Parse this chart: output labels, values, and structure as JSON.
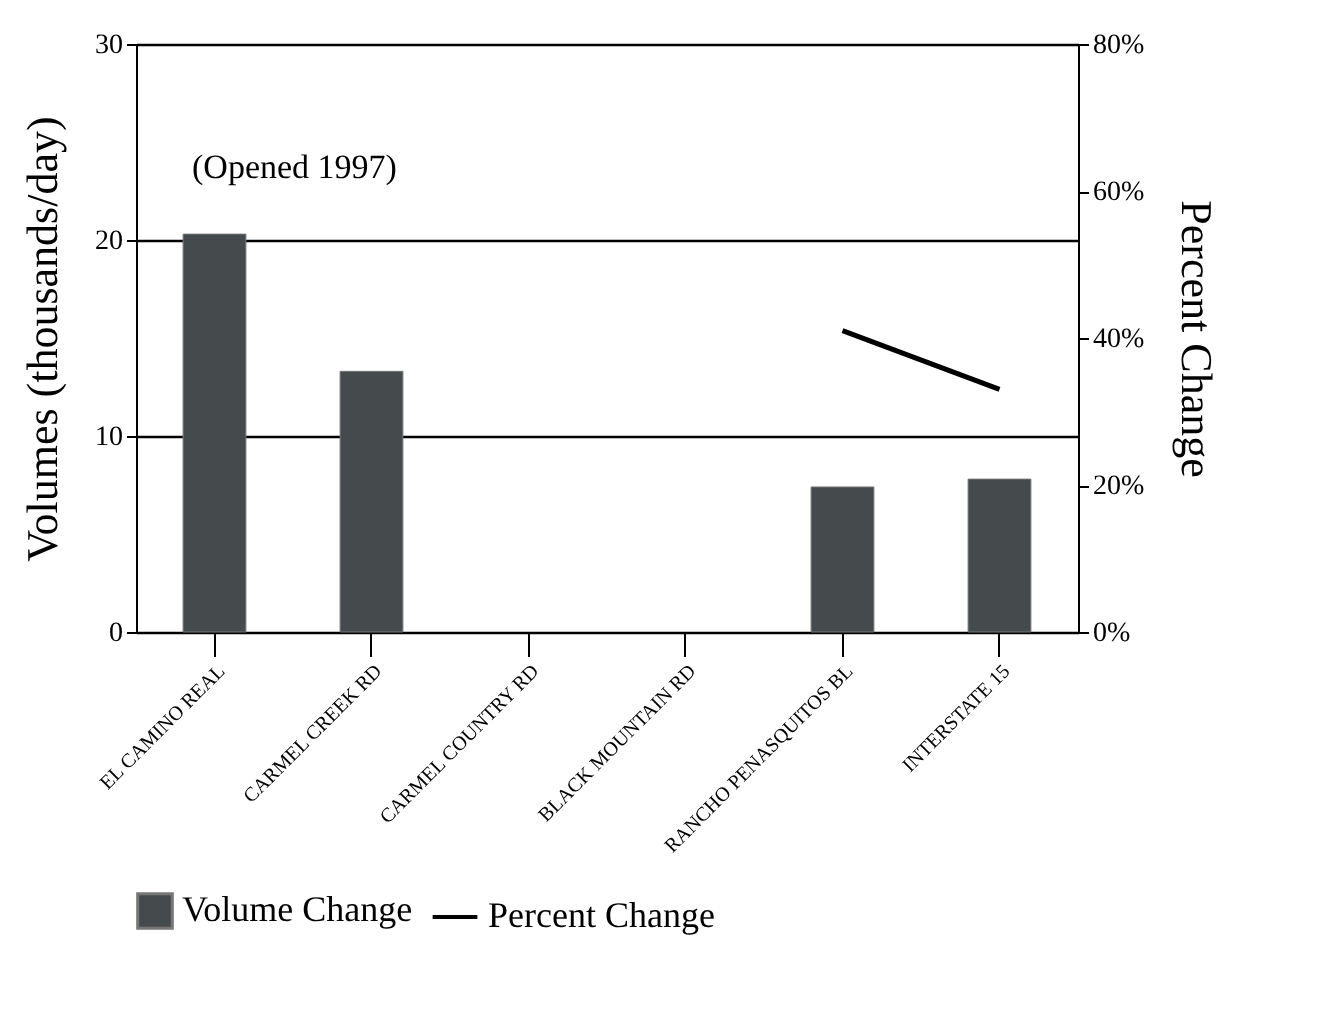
{
  "chart_data": {
    "type": "bar",
    "ylabel": "Volumes (thousands/day)",
    "y2label": "Percent Change",
    "categories": [
      "EL CAMINO REAL",
      "CARMEL CREEK RD",
      "CARMEL COUNTRY RD",
      "BLACK MOUNTAIN RD",
      "RANCHO PENASQUITOS BL",
      "INTERSTATE 15"
    ],
    "series": [
      {
        "name": "Volume Change",
        "color": "#454b4c",
        "values": [
          20.3,
          13.3,
          null,
          null,
          7.4,
          7.8
        ]
      },
      {
        "name": "Percent Change",
        "type": "line",
        "axis": "y2",
        "color": "#000000",
        "values": [
          null,
          null,
          null,
          null,
          41,
          33
        ]
      }
    ],
    "ylim": [
      0,
      30
    ],
    "yticks": [
      0,
      10,
      20,
      30
    ],
    "y2lim": [
      0,
      80
    ],
    "y2ticks": [
      {
        "value": 0,
        "label": "0%"
      },
      {
        "value": 20,
        "label": "20%"
      },
      {
        "value": 40,
        "label": "40%"
      },
      {
        "value": 60,
        "label": "60%"
      },
      {
        "value": 80,
        "label": "80%"
      }
    ],
    "annotations": [
      "(Opened 1997)"
    ],
    "grid": "y",
    "legend": "bottom",
    "line_style": "solid",
    "marker": "none"
  }
}
